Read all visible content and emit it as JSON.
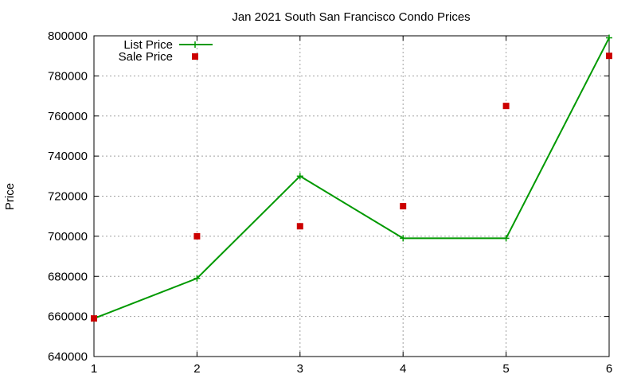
{
  "chart_data": {
    "type": "line",
    "title": "Jan 2021 South San Francisco Condo Prices",
    "xlabel": "",
    "ylabel": "Price",
    "x": [
      1,
      2,
      3,
      4,
      5,
      6
    ],
    "xlim": [
      1,
      6
    ],
    "ylim": [
      640000,
      800000
    ],
    "xticks": [
      "1",
      "2",
      "3",
      "4",
      "5",
      "6"
    ],
    "yticks": [
      "640000",
      "660000",
      "680000",
      "700000",
      "720000",
      "740000",
      "760000",
      "780000",
      "800000"
    ],
    "grid": true,
    "legend_position": "top-left",
    "series": [
      {
        "name": "List Price",
        "style": "line-points",
        "marker": "plus",
        "color": "#009900",
        "values": [
          659000,
          679000,
          730000,
          699000,
          699000,
          799000
        ]
      },
      {
        "name": "Sale Price",
        "style": "points",
        "marker": "square",
        "color": "#cc0000",
        "values": [
          659000,
          700000,
          705000,
          715000,
          765000,
          790000
        ]
      }
    ]
  }
}
